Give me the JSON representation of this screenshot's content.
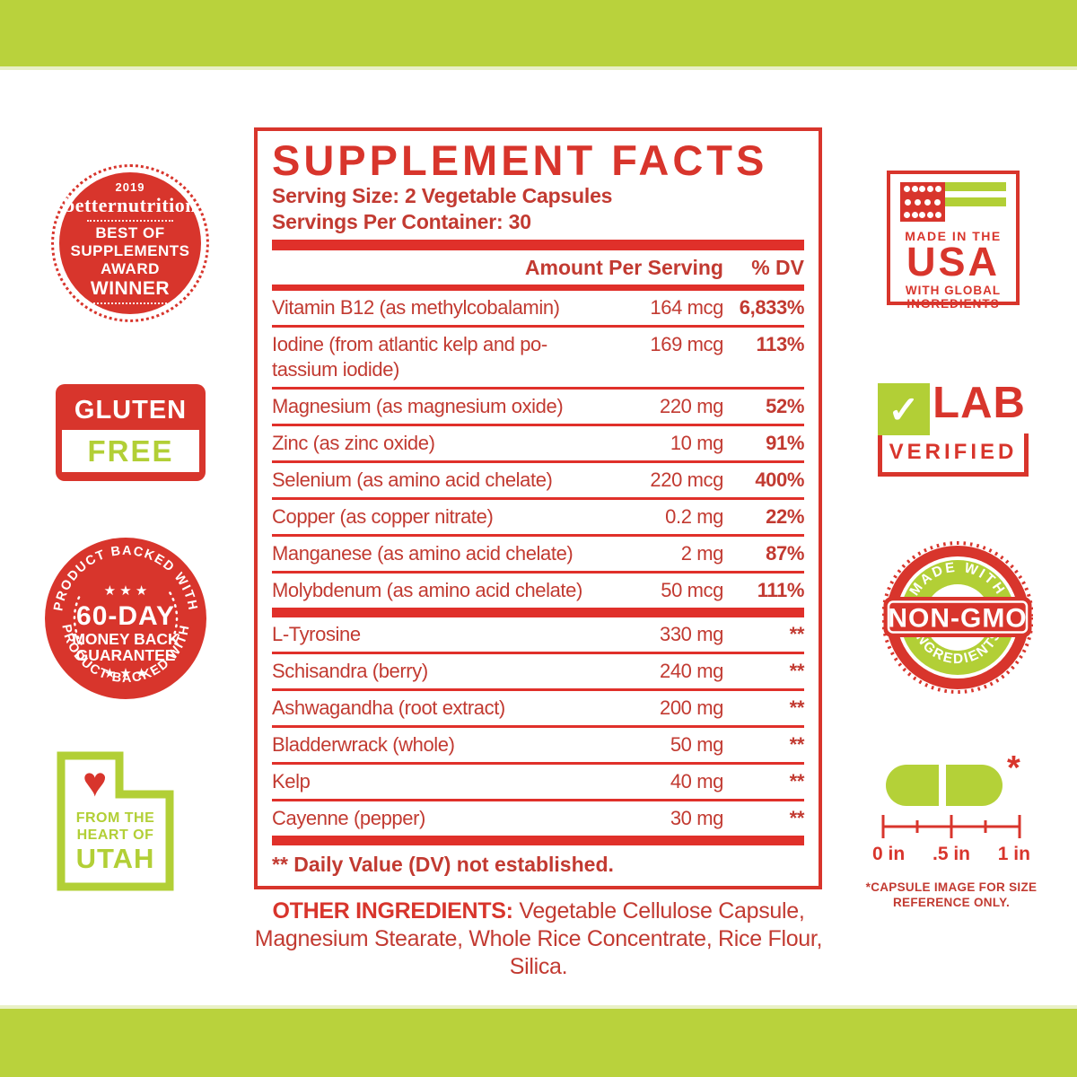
{
  "colors": {
    "red": "#d8352c",
    "green": "#b2cf36",
    "green_bar": "#b9d23c"
  },
  "icons": {
    "heart": "♥",
    "check": "✓",
    "stars": "★ ★ ★",
    "asterisk": "*"
  },
  "award_badge": {
    "year": "2019",
    "brand": "betternutrition",
    "line1": "BEST OF",
    "line2": "SUPPLEMENTS",
    "line3": "AWARD",
    "line4": "WINNER"
  },
  "gluten_badge": {
    "top": "GLUTEN",
    "bottom": "FREE"
  },
  "guarantee_badge": {
    "arc_top": "PRODUCT BACKED WITH",
    "arc_bottom": "PRODUCT BACKED WITH",
    "stars": "★ ★ ★",
    "line1": "60-DAY",
    "line2": "MONEY BACK",
    "line3": "GUARANTEE"
  },
  "utah_badge": {
    "line1": "FROM THE",
    "line2": "HEART OF",
    "line3": "UTAH"
  },
  "usa_badge": {
    "line1": "MADE IN THE",
    "line2": "USA",
    "line3": "WITH GLOBAL",
    "line4": "INGREDIENTS"
  },
  "lab_badge": {
    "word": "LAB",
    "verified": "VERIFIED"
  },
  "nongmo_badge": {
    "arc_top": "MADE WITH",
    "arc_bottom": "INGREDIENTS",
    "center": "NON-GMO"
  },
  "capsule": {
    "asterisk": "*",
    "label_0": "0 in",
    "label_half": ".5 in",
    "label_1": "1 in",
    "caption": "*CAPSULE IMAGE FOR SIZE REFERENCE ONLY."
  },
  "panel": {
    "title": "SUPPLEMENT FACTS",
    "serving_size": "Serving Size: 2 Vegetable Capsules",
    "servings_per_container": "Servings Per Container: 30",
    "col_amount": "Amount Per Serving",
    "col_dv": "% DV",
    "rows": [
      {
        "name": "Vitamin B12 (as methylcobalamin)",
        "amount": "164 mcg",
        "dv": "6,833%",
        "group": "minerals"
      },
      {
        "name": "Iodine (from atlantic kelp and po-\ntassium iodide)",
        "amount": "169 mcg",
        "dv": "113%",
        "group": "minerals"
      },
      {
        "name": "Magnesium (as magnesium oxide)",
        "amount": "220 mg",
        "dv": "52%",
        "group": "minerals"
      },
      {
        "name": "Zinc (as zinc oxide)",
        "amount": "10 mg",
        "dv": "91%",
        "group": "minerals"
      },
      {
        "name": "Selenium (as amino acid chelate)",
        "amount": "220 mcg",
        "dv": "400%",
        "group": "minerals"
      },
      {
        "name": "Copper (as copper nitrate)",
        "amount": "0.2 mg",
        "dv": "22%",
        "group": "minerals"
      },
      {
        "name": "Manganese (as amino acid chelate)",
        "amount": "2 mg",
        "dv": "87%",
        "group": "minerals"
      },
      {
        "name": "Molybdenum (as amino acid chelate)",
        "amount": "50 mcg",
        "dv": "111%",
        "group": "minerals"
      },
      {
        "name": "L-Tyrosine",
        "amount": "330 mg",
        "dv": "**",
        "group": "botanicals"
      },
      {
        "name": "Schisandra (berry)",
        "amount": "240 mg",
        "dv": "**",
        "group": "botanicals"
      },
      {
        "name": "Ashwagandha (root extract)",
        "amount": "200 mg",
        "dv": "**",
        "group": "botanicals"
      },
      {
        "name": "Bladderwrack (whole)",
        "amount": "50 mg",
        "dv": "**",
        "group": "botanicals"
      },
      {
        "name": "Kelp",
        "amount": "40 mg",
        "dv": "**",
        "group": "botanicals"
      },
      {
        "name": "Cayenne (pepper)",
        "amount": "30 mg",
        "dv": "**",
        "group": "botanicals"
      }
    ],
    "footnote": "** Daily Value (DV) not established."
  },
  "other_ingredients": {
    "label": "OTHER INGREDIENTS:",
    "text": " Vegetable Cellulose Capsule, Magnesium Stearate, Whole Rice Concentrate, Rice Flour, Silica."
  }
}
